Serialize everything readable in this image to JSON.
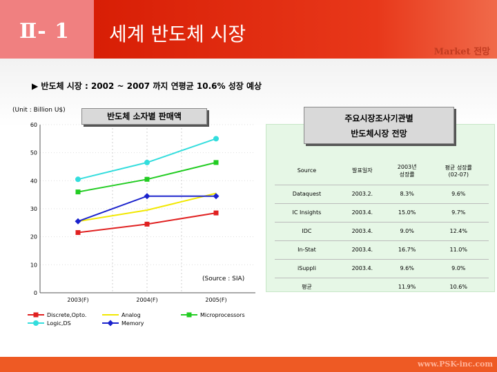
{
  "header": {
    "section_num": "Ⅱ- 1",
    "title": "세계 반도체 시장",
    "tagline": "Market 전망"
  },
  "bullet": "▶ 반도체 시장 : 2002 ~ 2007 까지 연평균 10.6% 성장 예상",
  "unit": "(Unit : Billion U$)",
  "chart_box_title": "반도체 소자별 판매액",
  "survey_box_title_line1": "주요시장조사기관별",
  "survey_box_title_line2": "반도체시장 전망",
  "chart_source": "(Source : SIA)",
  "colors": {
    "header_red": "#d81e05",
    "header_pink": "#f08080",
    "panel_green": "#e6f7e6",
    "footer_orange": "#ee5a24"
  },
  "chart_data": {
    "type": "line",
    "title": "반도체 소자별 판매액",
    "ylabel": "(Unit : Billion U$)",
    "x": [
      "2003(F)",
      "",
      "2004(F)",
      "",
      "2005(F)"
    ],
    "x_ticks": [
      "2003(F)",
      "2004(F)",
      "2005(F)"
    ],
    "ylim": [
      0,
      60
    ],
    "y_ticks": [
      "60",
      "50",
      "40",
      "30",
      "20",
      "10",
      "0"
    ],
    "legend_position": "bottom",
    "series": [
      {
        "name": "Discrete,Opto.",
        "color": "#e02020",
        "marker": "square",
        "values": [
          21.5,
          null,
          24.5,
          null,
          28.5
        ]
      },
      {
        "name": "Analog",
        "color": "#f2e800",
        "marker": "none",
        "values": [
          25.5,
          null,
          29.5,
          null,
          35.5
        ]
      },
      {
        "name": "Microprocessors",
        "color": "#22cc22",
        "marker": "square",
        "values": [
          36,
          null,
          40.5,
          null,
          46.5
        ]
      },
      {
        "name": "Logic,DS",
        "color": "#33dddd",
        "marker": "circle",
        "values": [
          40.5,
          null,
          46.5,
          null,
          55
        ]
      },
      {
        "name": "Memory",
        "color": "#1a22cc",
        "marker": "diamond",
        "values": [
          25.5,
          null,
          34.5,
          null,
          34.5
        ]
      }
    ]
  },
  "table": {
    "headers": [
      "Source",
      "발표일자",
      "2003년\n성장률",
      "평균 성장률\n(02-07)"
    ],
    "rows": [
      [
        "Dataquest",
        "2003.2.",
        "8.3%",
        "9.6%"
      ],
      [
        "IC Insights",
        "2003.4.",
        "15.0%",
        "9.7%"
      ],
      [
        "IDC",
        "2003.4.",
        "9.0%",
        "12.4%"
      ],
      [
        "In-Stat",
        "2003.4.",
        "16.7%",
        "11.0%"
      ],
      [
        "iSuppli",
        "2003.4.",
        "9.6%",
        "9.0%"
      ],
      [
        "평균",
        "",
        "11.9%",
        "10.6%"
      ]
    ]
  },
  "footer_url": "www.PSK-inc.com"
}
